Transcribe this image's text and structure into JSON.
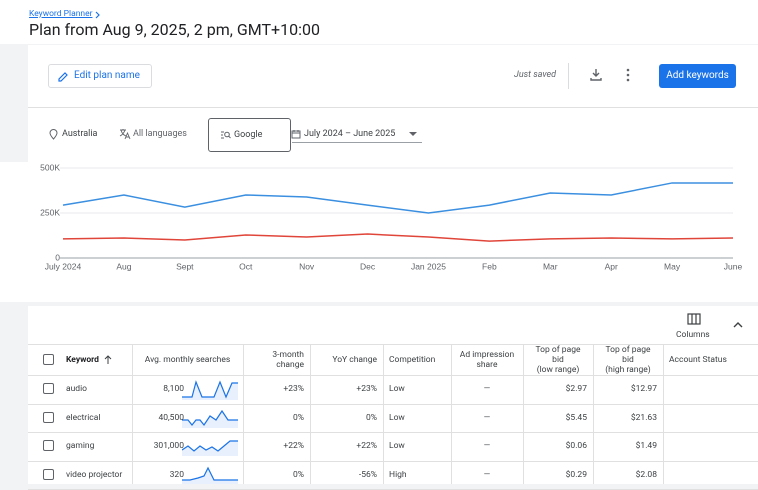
{
  "header": {
    "breadcrumb": "Keyword Planner",
    "title": "Plan from Aug 9, 2025, 2 pm, GMT+10:00"
  },
  "toolbar": {
    "edit_plan_name": "Edit plan name",
    "status": "Just saved",
    "add_keywords": "Add keywords"
  },
  "filters": {
    "location": "Australia",
    "language": "All languages",
    "network": "Google",
    "date_range": "July 2024 – June 2025"
  },
  "chart_data": {
    "type": "line",
    "categories": [
      "July 2024",
      "Aug",
      "Sept",
      "Oct",
      "Nov",
      "Dec",
      "Jan 2025",
      "Feb",
      "Mar",
      "Apr",
      "May",
      "June"
    ],
    "series": [
      {
        "color": "#3b8fe0",
        "values": [
          294000,
          350000,
          283000,
          350000,
          339000,
          294000,
          250000,
          294000,
          361000,
          350000,
          417000,
          417000
        ]
      },
      {
        "color": "#e0453a",
        "values": [
          106000,
          111000,
          100000,
          128000,
          117000,
          133000,
          117000,
          94000,
          106000,
          111000,
          106000,
          111000
        ]
      }
    ],
    "ylim": [
      0,
      500000
    ],
    "yticks": [
      0,
      {
        "value": 250000,
        "label": "250K"
      },
      {
        "value": 500000,
        "label": "500K"
      }
    ],
    "grid": true
  },
  "table": {
    "columns_button": "Columns",
    "headers": [
      "Keyword",
      "Avg. monthly searches",
      "3-month\nchange",
      "YoY change",
      "Competition",
      "Ad impression\nshare",
      "Top of page bid\n(low range)",
      "Top of page bid\n(high range)",
      "Account Status"
    ],
    "rows": [
      [
        "audio",
        "8,100",
        "+23%",
        "+23%",
        "Low",
        "—",
        "$2.97",
        "$12.97"
      ],
      [
        "electrical",
        "40,500",
        "0%",
        "0%",
        "Low",
        "—",
        "$5.45",
        "$21.63"
      ],
      [
        "gaming",
        "301,000",
        "+22%",
        "+22%",
        "Low",
        "—",
        "$0.06",
        "$1.49"
      ],
      [
        "video projector",
        "320",
        "0%",
        "-56%",
        "High",
        "—",
        "$0.29",
        "$2.08"
      ]
    ]
  }
}
